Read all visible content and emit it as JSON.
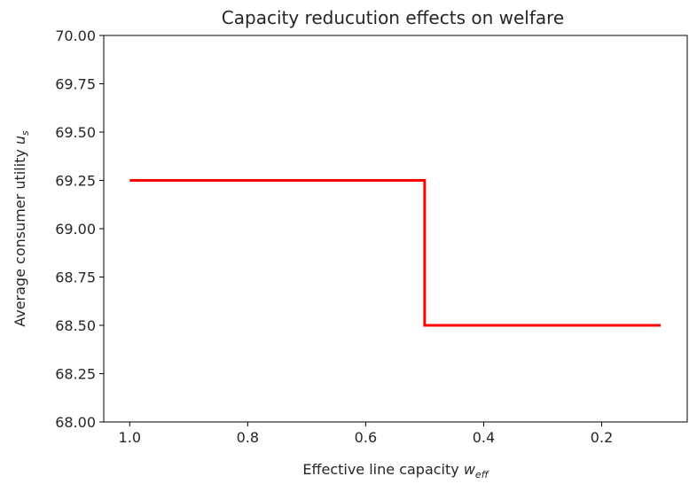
{
  "chart_data": {
    "type": "line",
    "title": "Capacity reducution effects on welfare",
    "xlabel": {
      "base": "Effective line capacity ",
      "var": "w",
      "sub": "eff"
    },
    "ylabel": {
      "base": "Average consumer utility ",
      "var": "u",
      "sub": "s"
    },
    "xlim": [
      1.044,
      0.055
    ],
    "ylim": [
      68.0,
      70.0
    ],
    "x_inverted": true,
    "xticks": [
      1.0,
      0.8,
      0.6,
      0.4,
      0.2
    ],
    "xtick_labels": [
      "1.0",
      "0.8",
      "0.6",
      "0.4",
      "0.2"
    ],
    "yticks": [
      68.0,
      68.25,
      68.5,
      68.75,
      69.0,
      69.25,
      69.5,
      69.75,
      70.0
    ],
    "ytick_labels": [
      "68.00",
      "68.25",
      "68.50",
      "68.75",
      "69.00",
      "69.25",
      "69.50",
      "69.75",
      "70.00"
    ],
    "grid": false,
    "series": [
      {
        "color": "#ff0000",
        "x": [
          1.0,
          0.5,
          0.5,
          0.1
        ],
        "y": [
          69.25,
          69.25,
          68.5,
          68.5
        ]
      }
    ]
  }
}
